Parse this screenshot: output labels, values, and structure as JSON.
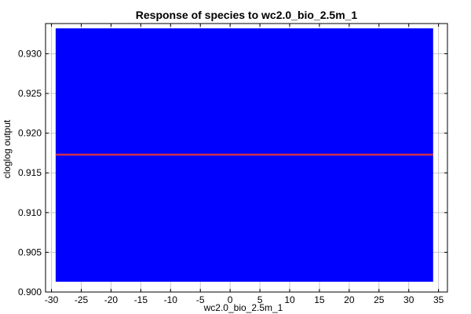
{
  "chart_data": {
    "type": "area",
    "title": "Response of species to wc2.0_bio_2.5m_1",
    "xlabel": "wc2.0_bio_2.5m_1",
    "ylabel": "cloglog output",
    "xlim": [
      -31,
      36.5
    ],
    "ylim": [
      0.9,
      0.9338
    ],
    "xticks": [
      -30,
      -25,
      -20,
      -15,
      -10,
      -5,
      0,
      5,
      10,
      15,
      20,
      25,
      30,
      35
    ],
    "yticks": [
      0.9,
      0.905,
      0.91,
      0.915,
      0.92,
      0.925,
      0.93
    ],
    "xtick_labels": [
      "-30",
      "-25",
      "-20",
      "-15",
      "-10",
      "-5",
      "0",
      "5",
      "10",
      "15",
      "20",
      "25",
      "30",
      "35"
    ],
    "ytick_labels": [
      "0.900",
      "0.905",
      "0.910",
      "0.915",
      "0.920",
      "0.925",
      "0.930"
    ],
    "grid": true,
    "series": [
      {
        "kind": "band",
        "color": "#0000ff",
        "x": [
          -29.3,
          34.1
        ],
        "lower": [
          0.9013,
          0.9013
        ],
        "upper": [
          0.9332,
          0.9332
        ]
      },
      {
        "kind": "line",
        "color": "#d0304a",
        "x": [
          -29.3,
          34.1
        ],
        "y": [
          0.9173,
          0.9173
        ]
      }
    ]
  }
}
